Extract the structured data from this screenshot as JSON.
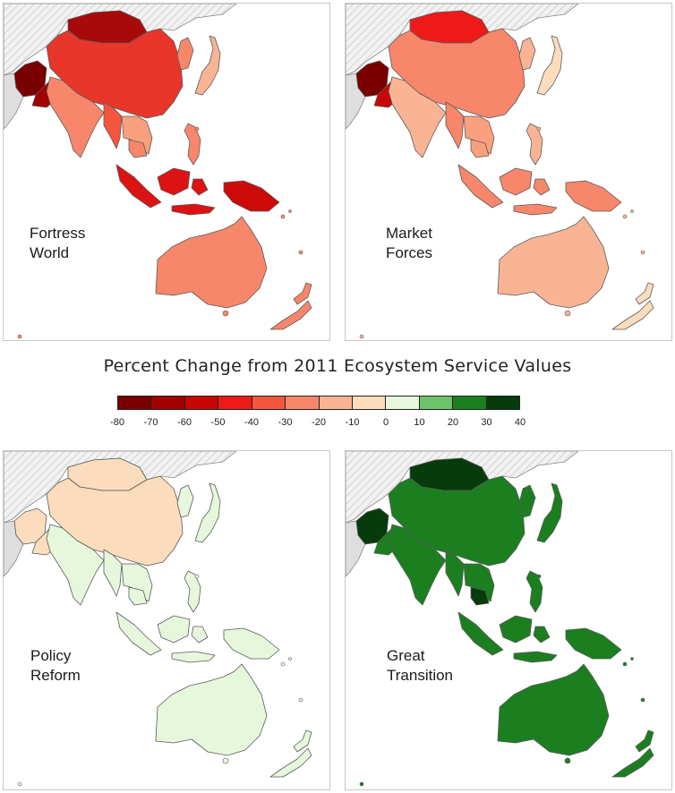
{
  "legend": {
    "title": "Percent Change from 2011 Ecosystem Service Values",
    "ticks": [
      "-80",
      "-70",
      "-60",
      "-50",
      "-40",
      "-30",
      "-20",
      "-10",
      "0",
      "10",
      "20",
      "30",
      "40"
    ],
    "bins": [
      {
        "range": [
          -80,
          -70
        ],
        "color": "#7a0000"
      },
      {
        "range": [
          -70,
          -60
        ],
        "color": "#a30000"
      },
      {
        "range": [
          -60,
          -50
        ],
        "color": "#c80606"
      },
      {
        "range": [
          -50,
          -40
        ],
        "color": "#ee1a1a"
      },
      {
        "range": [
          -40,
          -30
        ],
        "color": "#f5553c"
      },
      {
        "range": [
          -30,
          -20
        ],
        "color": "#f7866a"
      },
      {
        "range": [
          -20,
          -10
        ],
        "color": "#f9b494"
      },
      {
        "range": [
          -10,
          0
        ],
        "color": "#fbdcbd"
      },
      {
        "range": [
          0,
          10
        ],
        "color": "#e6f7dc"
      },
      {
        "range": [
          10,
          20
        ],
        "color": "#6cc36a"
      },
      {
        "range": [
          20,
          30
        ],
        "color": "#1b7f1f"
      },
      {
        "range": [
          30,
          40
        ],
        "color": "#063b0b"
      }
    ]
  },
  "panels": [
    {
      "label_line1": "Fortress",
      "label_line2": "World",
      "colors": {
        "china": "#e8362b",
        "mongolia": "#a80a0a",
        "west": "#7a0000",
        "westb": "#a30000",
        "india": "#f7866a",
        "seasia": "#f9a07e",
        "indonesia": "#dd1212",
        "philippines": "#f7866a",
        "japan": "#f9b494",
        "korea": "#f7866a",
        "australia": "#f7866a",
        "nz": "#f7866a",
        "png": "#cc0a0a",
        "myanmar": "#f5553c",
        "cambodia": "#f7866a"
      }
    },
    {
      "label_line1": "Market",
      "label_line2": "Forces",
      "colors": {
        "china": "#f7866a",
        "mongolia": "#ee1a1a",
        "west": "#7a0000",
        "westb": "#c80606",
        "india": "#f9b494",
        "seasia": "#f9a07e",
        "indonesia": "#f7866a",
        "philippines": "#f9b494",
        "japan": "#fbdcbd",
        "korea": "#f9b494",
        "australia": "#f9b494",
        "nz": "#fbdcbd",
        "png": "#f7866a",
        "myanmar": "#f7866a",
        "cambodia": "#f9a07e"
      }
    },
    {
      "label_line1": "Policy",
      "label_line2": "Reform",
      "colors": {
        "china": "#fbdcbd",
        "mongolia": "#fbdcbd",
        "west": "#fbdcbd",
        "westb": "#fbdcbd",
        "india": "#e6f7dc",
        "seasia": "#e6f7dc",
        "indonesia": "#e6f7dc",
        "philippines": "#e6f7dc",
        "japan": "#e6f7dc",
        "korea": "#e6f7dc",
        "australia": "#e6f7dc",
        "nz": "#e6f7dc",
        "png": "#e6f7dc",
        "myanmar": "#e6f7dc",
        "cambodia": "#e6f7dc"
      }
    },
    {
      "label_line1": "Great",
      "label_line2": "Transition",
      "colors": {
        "china": "#1b7f1f",
        "mongolia": "#063b0b",
        "west": "#063b0b",
        "westb": "#1b7f1f",
        "india": "#1b7f1f",
        "seasia": "#1b7f1f",
        "indonesia": "#1b7f1f",
        "philippines": "#1b7f1f",
        "japan": "#1b7f1f",
        "korea": "#1b7f1f",
        "australia": "#1b7f1f",
        "nz": "#1b7f1f",
        "png": "#1b7f1f",
        "myanmar": "#1b7f1f",
        "cambodia": "#063b0b"
      }
    }
  ]
}
